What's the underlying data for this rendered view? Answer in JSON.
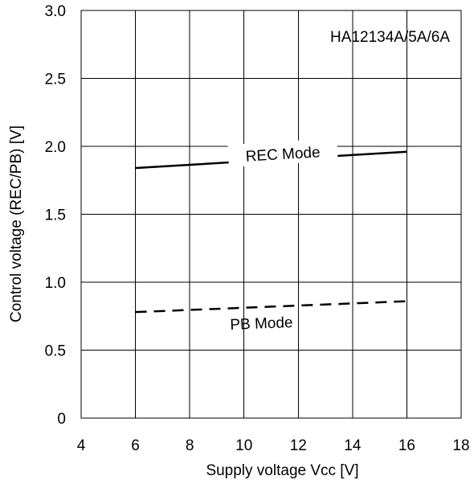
{
  "chart_data": {
    "type": "line",
    "xlabel": "Supply voltage Vcc [V]",
    "ylabel": "Control voltage (REC/PB)  [V]",
    "xlim": [
      4,
      18
    ],
    "ylim": [
      0,
      3.0
    ],
    "x_ticks": [
      4,
      6,
      8,
      10,
      12,
      14,
      16,
      18
    ],
    "x_tick_labels": [
      "4",
      "6",
      "8",
      "10",
      "12",
      "14",
      "16",
      "18"
    ],
    "y_ticks": [
      0,
      0.5,
      1.0,
      1.5,
      2.0,
      2.5,
      3.0
    ],
    "y_tick_labels": [
      "0",
      "0.5",
      "1.0",
      "1.5",
      "2.0",
      "2.5",
      "3.0"
    ],
    "grid": true,
    "annotation": "HA12134A/5A/6A",
    "series": [
      {
        "name": "REC Mode",
        "line_style": "solid",
        "color": "#000000",
        "x": [
          6,
          16
        ],
        "y": [
          1.84,
          1.96
        ]
      },
      {
        "name": "PB Mode",
        "line_style": "dashed",
        "color": "#000000",
        "x": [
          6,
          16
        ],
        "y": [
          0.78,
          0.86
        ]
      }
    ]
  }
}
